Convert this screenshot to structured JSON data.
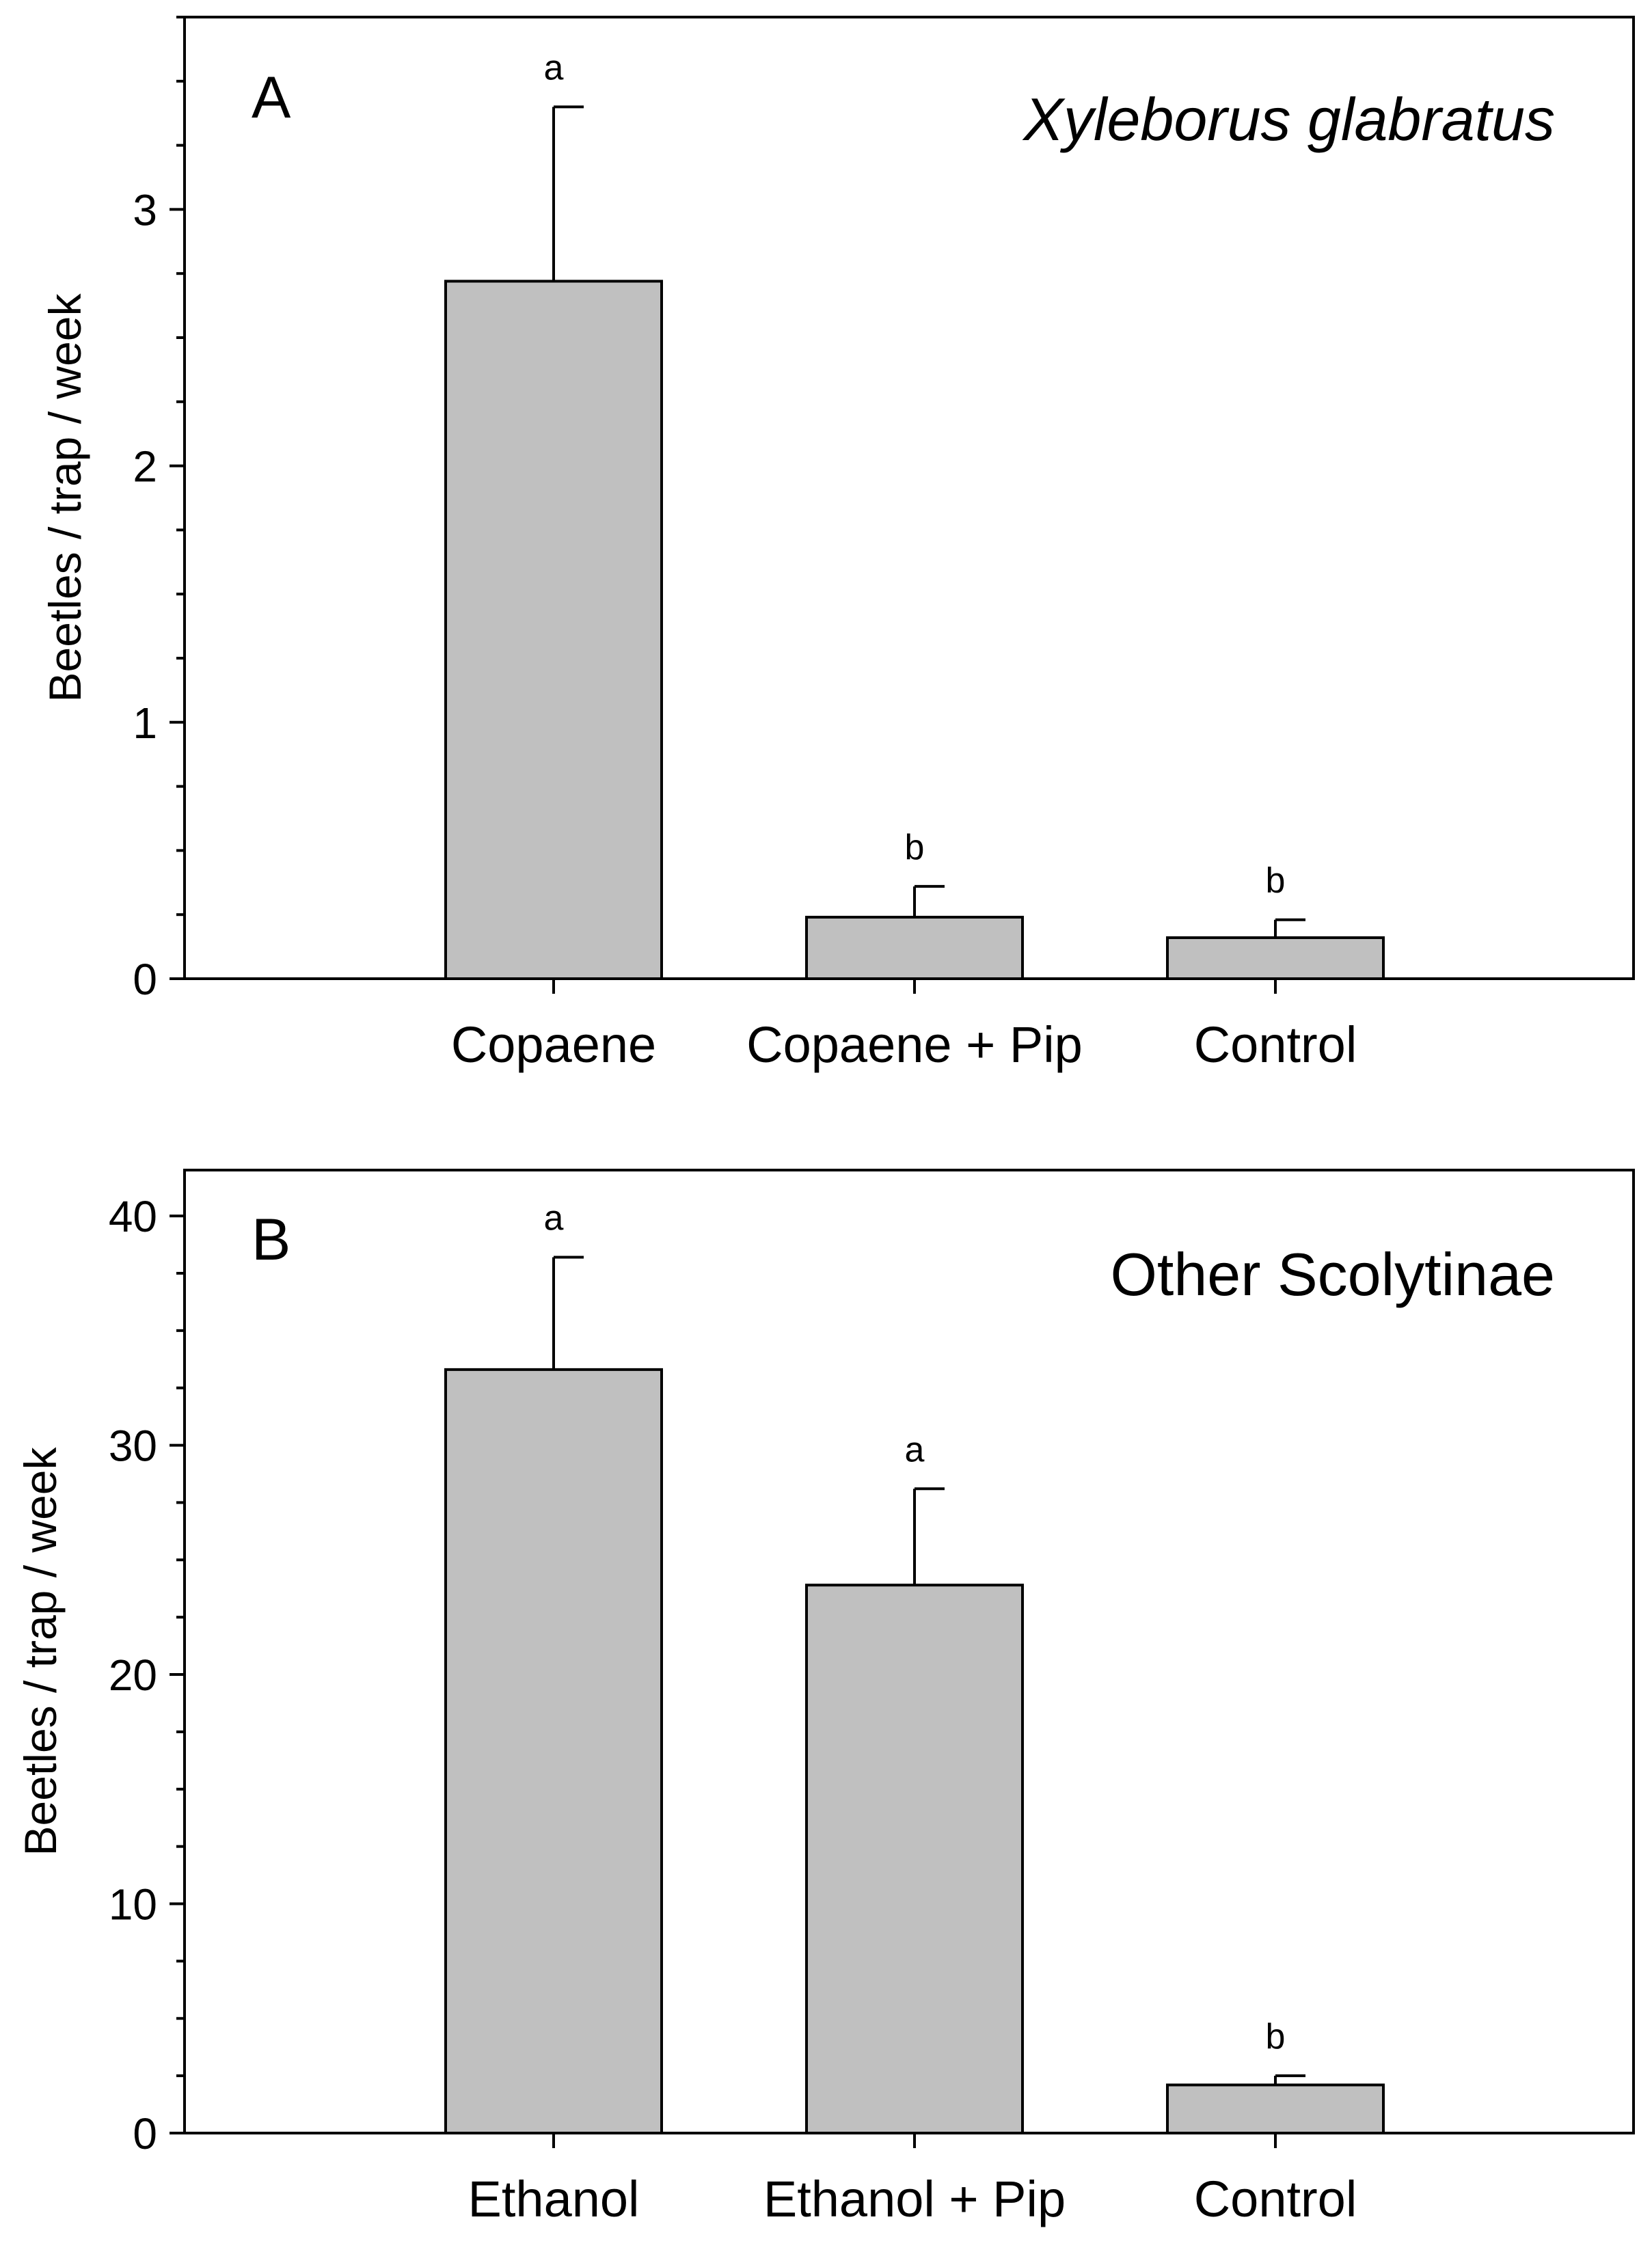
{
  "colors": {
    "bar_fill": "#c0c0c0",
    "stroke": "#000000",
    "background": "#ffffff"
  },
  "chart_data": [
    {
      "type": "bar",
      "panel_label": "A",
      "title": "Xyleborus glabratus",
      "title_italic": true,
      "ylabel": "Beetles / trap / week",
      "xlabel": "",
      "categories": [
        "Copaene",
        "Copaene + Pip",
        "Control"
      ],
      "values": [
        2.72,
        0.24,
        0.16
      ],
      "errors": [
        0.68,
        0.12,
        0.07
      ],
      "significance": [
        "a",
        "b",
        "b"
      ],
      "ylim": [
        0,
        3.75
      ],
      "yticks": [
        0,
        1,
        2,
        3
      ],
      "ytick_labels": [
        "0",
        "1",
        "2",
        "3"
      ],
      "minor_tick_step": 0.25
    },
    {
      "type": "bar",
      "panel_label": "B",
      "title": "Other Scolytinae",
      "title_italic": false,
      "ylabel": "Beetles / trap / week",
      "xlabel": "",
      "categories": [
        "Ethanol",
        "Ethanol + Pip",
        "Control"
      ],
      "values": [
        33.3,
        23.9,
        2.1
      ],
      "errors": [
        4.9,
        4.2,
        0.4
      ],
      "significance": [
        "a",
        "a",
        "b"
      ],
      "ylim": [
        0,
        42
      ],
      "yticks": [
        0,
        10,
        20,
        30,
        40
      ],
      "ytick_labels": [
        "0",
        "10",
        "20",
        "30",
        "40"
      ],
      "minor_tick_step": 2.5
    }
  ]
}
